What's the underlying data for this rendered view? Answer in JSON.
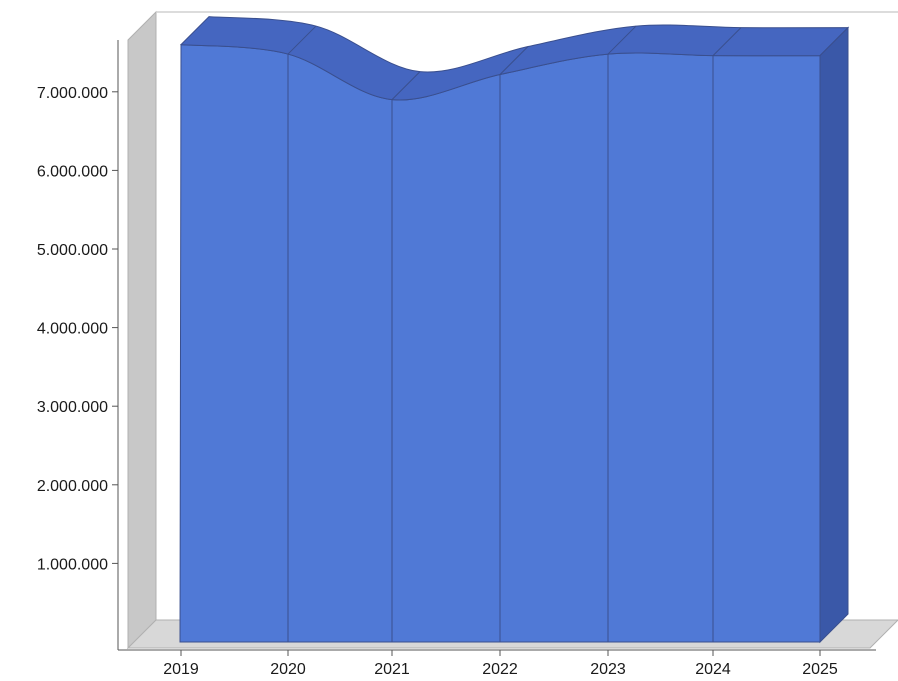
{
  "chart_data": {
    "type": "area",
    "three_d": true,
    "title": "",
    "xlabel": "",
    "ylabel": "",
    "categories": [
      "2019",
      "2020",
      "2021",
      "2022",
      "2023",
      "2024",
      "2025"
    ],
    "series": [
      {
        "values": [
          7600000,
          7480000,
          6900000,
          7220000,
          7480000,
          7460000,
          7460000
        ]
      }
    ],
    "ylim": [
      0,
      8000000
    ],
    "yticks": [
      1000000,
      2000000,
      3000000,
      4000000,
      5000000,
      6000000,
      7000000
    ],
    "ytick_labels": [
      "1.000.000",
      "2.000.000",
      "3.000.000",
      "4.000.000",
      "5.000.000",
      "6.000.000",
      "7.000.000"
    ],
    "grid": false,
    "legend": "none",
    "colors": {
      "front": "#5079d6",
      "top": "#4566c0",
      "side": "#3a58a8",
      "divider": "#3a4f8e",
      "wall": "#c8c8c8",
      "floor": "#d8d8d8",
      "axis": "#b0b0b0"
    }
  }
}
